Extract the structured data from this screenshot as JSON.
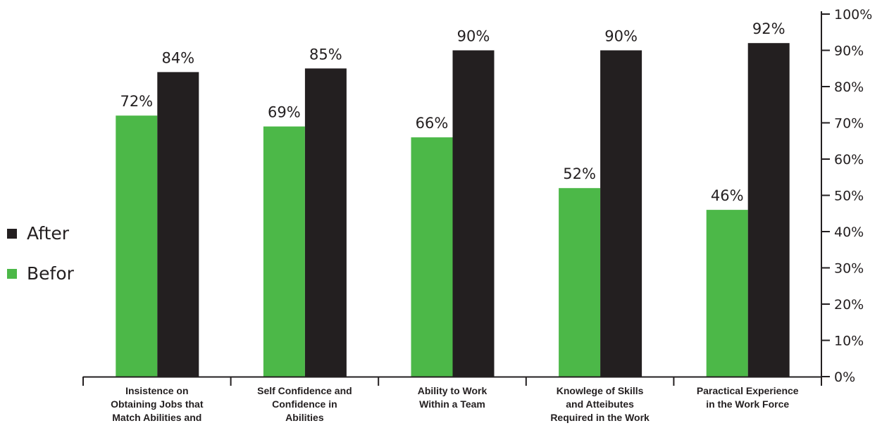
{
  "chart_data": {
    "type": "bar",
    "categories": [
      [
        "Insistence on",
        "Obtaining Jobs that",
        "Match Abilities and"
      ],
      [
        "Self Confidence and",
        "Confidence in",
        "Abilities"
      ],
      [
        "Ability to Work",
        "Within a Team"
      ],
      [
        "Knowlege of Skills",
        "and Atteibutes",
        "Required in the Work"
      ],
      [
        "Paractical Experience",
        "in the Work Force"
      ]
    ],
    "series": [
      {
        "name": "Befor",
        "color": "#4cb848",
        "values": [
          72,
          69,
          66,
          52,
          46
        ],
        "labels": [
          "72%",
          "69%",
          "66%",
          "52%",
          "46%"
        ]
      },
      {
        "name": "After",
        "color": "#231f20",
        "values": [
          84,
          85,
          90,
          90,
          92
        ],
        "labels": [
          "84%",
          "85%",
          "90%",
          "90%",
          "92%"
        ]
      }
    ],
    "y_ticks": [
      "0%",
      "10%",
      "20%",
      "30%",
      "40%",
      "50%",
      "60%",
      "70%",
      "80%",
      "90%",
      "100%"
    ],
    "ylim": [
      0,
      100
    ],
    "y_axis_side": "right",
    "legend_position": "left",
    "legend_order": [
      "After",
      "Befor"
    ],
    "grid": false
  }
}
